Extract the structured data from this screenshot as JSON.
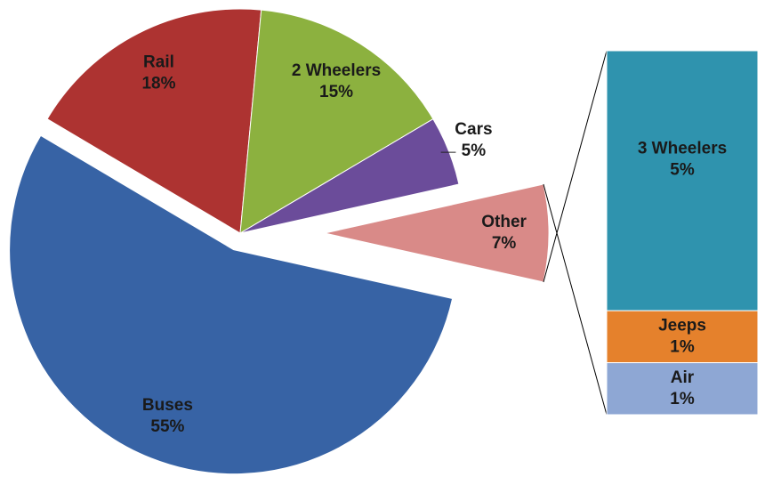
{
  "chart_data": [
    {
      "type": "pie",
      "categories": [
        "Buses",
        "Rail",
        "2 Wheelers",
        "Cars",
        "Other"
      ],
      "values": [
        55,
        18,
        15,
        5,
        7
      ],
      "value_labels": [
        "55%",
        "18%",
        "15%",
        "5%",
        "7%"
      ],
      "colors": [
        "#3763a5",
        "#ad3331",
        "#8cb13f",
        "#6b4c9a",
        "#d98a88"
      ]
    },
    {
      "type": "bar",
      "categories": [
        "3 Wheelers",
        "Jeeps",
        "Air"
      ],
      "values": [
        5,
        1,
        1
      ],
      "value_labels": [
        "5%",
        "1%",
        "1%"
      ],
      "colors": [
        "#2f93ae",
        "#e5812c",
        "#8ea7d4"
      ]
    }
  ]
}
